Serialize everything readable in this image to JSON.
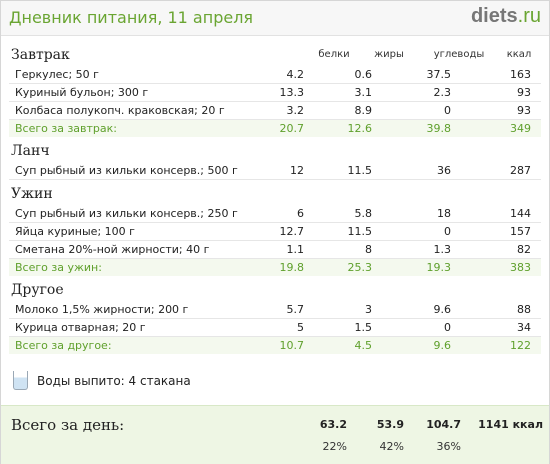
{
  "header": {
    "title": "Дневник питания, 11 апреля",
    "brand_main": "diets",
    "brand_suffix": ".ru"
  },
  "columns": {
    "protein": "белки",
    "fat": "жиры",
    "carbs": "углеводы",
    "kcal": "ккал"
  },
  "sections": [
    {
      "name": "Завтрак",
      "items": [
        {
          "food": "Геркулес; 50 г",
          "protein": "4.2",
          "fat": "0.6",
          "carbs": "37.5",
          "kcal": "163"
        },
        {
          "food": "Куриный бульон; 300 г",
          "protein": "13.3",
          "fat": "3.1",
          "carbs": "2.3",
          "kcal": "93"
        },
        {
          "food": "Колбаса полукопч. краковская; 20 г",
          "protein": "3.2",
          "fat": "8.9",
          "carbs": "0",
          "kcal": "93"
        }
      ],
      "total": {
        "label": "Всего за завтрак:",
        "protein": "20.7",
        "fat": "12.6",
        "carbs": "39.8",
        "kcal": "349"
      }
    },
    {
      "name": "Ланч",
      "items": [
        {
          "food": "Суп рыбный из кильки консерв.; 500 г",
          "protein": "12",
          "fat": "11.5",
          "carbs": "36",
          "kcal": "287"
        }
      ]
    },
    {
      "name": "Ужин",
      "items": [
        {
          "food": "Суп рыбный из кильки консерв.; 250 г",
          "protein": "6",
          "fat": "5.8",
          "carbs": "18",
          "kcal": "144"
        },
        {
          "food": "Яйца куриные; 100 г",
          "protein": "12.7",
          "fat": "11.5",
          "carbs": "0",
          "kcal": "157"
        },
        {
          "food": "Сметана 20%-ной жирности; 40 г",
          "protein": "1.1",
          "fat": "8",
          "carbs": "1.3",
          "kcal": "82"
        }
      ],
      "total": {
        "label": "Всего за ужин:",
        "protein": "19.8",
        "fat": "25.3",
        "carbs": "19.3",
        "kcal": "383"
      }
    },
    {
      "name": "Другое",
      "items": [
        {
          "food": "Молоко 1,5% жирности; 200 г",
          "protein": "5.7",
          "fat": "3",
          "carbs": "9.6",
          "kcal": "88"
        },
        {
          "food": "Курица отварная; 20 г",
          "protein": "5",
          "fat": "1.5",
          "carbs": "0",
          "kcal": "34"
        }
      ],
      "total": {
        "label": "Всего за другое:",
        "protein": "10.7",
        "fat": "4.5",
        "carbs": "9.6",
        "kcal": "122"
      }
    }
  ],
  "water": {
    "icon": "water-glass-icon",
    "text": "Воды выпито: 4 стакана"
  },
  "daily": {
    "label": "Всего за день:",
    "protein": "63.2",
    "fat": "53.9",
    "carbs": "104.7",
    "kcal": "1141 ккал",
    "protein_pct": "22%",
    "fat_pct": "42%",
    "carbs_pct": "36%"
  },
  "colors": {
    "accent": "#6aa532",
    "total_text": "#5fa02c",
    "daily_bg": "#eef6e4"
  }
}
